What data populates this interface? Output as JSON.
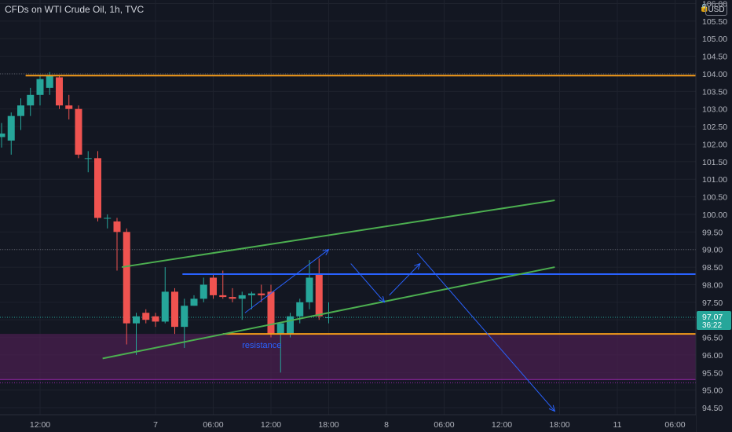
{
  "title": "CFDs on WTI Crude Oil, 1h, TVC",
  "currency": "USD",
  "price_label": {
    "price": "97.07",
    "countdown": "36:22"
  },
  "annotations": {
    "resistance": "resistance"
  },
  "colors": {
    "background": "#131722",
    "grid": "#1e222d",
    "up": "#26a69a",
    "down": "#ef5350",
    "orange_line": "#f59c1a",
    "green_line": "#4caf50",
    "blue_line": "#2962ff",
    "zone": "#4a1f4f",
    "zone_edge": "#9c27b0",
    "axis_text": "#b2b5be",
    "price_tag": "#26a69a"
  },
  "chart_data": {
    "type": "candlestick",
    "title": "CFDs on WTI Crude Oil, 1h, TVC",
    "ylim": [
      94.3,
      106.1
    ],
    "y_ticks": [
      "94.50",
      "95.00",
      "95.50",
      "96.00",
      "96.50",
      "97.00",
      "97.50",
      "98.00",
      "98.50",
      "99.00",
      "99.50",
      "100.00",
      "100.50",
      "101.00",
      "101.50",
      "102.00",
      "102.50",
      "103.00",
      "103.50",
      "104.00",
      "104.50",
      "105.00",
      "105.50",
      "106.00"
    ],
    "x_ticks": [
      {
        "bar": 4,
        "label": "12:00"
      },
      {
        "bar": 16,
        "label": "7"
      },
      {
        "bar": 22,
        "label": "06:00"
      },
      {
        "bar": 28,
        "label": "12:00"
      },
      {
        "bar": 34,
        "label": "18:00"
      },
      {
        "bar": 40,
        "label": "8"
      },
      {
        "bar": 46,
        "label": "06:00"
      },
      {
        "bar": 52,
        "label": "12:00"
      },
      {
        "bar": 58,
        "label": "18:00"
      },
      {
        "bar": 64,
        "label": "11"
      },
      {
        "bar": 70,
        "label": "06:00"
      }
    ],
    "candles": [
      {
        "o": 102.2,
        "h": 102.6,
        "l": 101.9,
        "c": 102.3
      },
      {
        "o": 102.1,
        "h": 102.9,
        "l": 101.7,
        "c": 102.8
      },
      {
        "o": 102.8,
        "h": 103.3,
        "l": 102.4,
        "c": 103.1
      },
      {
        "o": 103.1,
        "h": 103.6,
        "l": 102.8,
        "c": 103.4
      },
      {
        "o": 103.4,
        "h": 103.95,
        "l": 103.1,
        "c": 103.85
      },
      {
        "o": 103.6,
        "h": 104.05,
        "l": 103.4,
        "c": 103.95
      },
      {
        "o": 103.9,
        "h": 103.95,
        "l": 103.0,
        "c": 103.1
      },
      {
        "o": 103.1,
        "h": 103.4,
        "l": 102.7,
        "c": 103.0
      },
      {
        "o": 103.0,
        "h": 103.1,
        "l": 101.6,
        "c": 101.7
      },
      {
        "o": 101.6,
        "h": 101.8,
        "l": 101.2,
        "c": 101.6
      },
      {
        "o": 101.6,
        "h": 101.8,
        "l": 99.8,
        "c": 99.9
      },
      {
        "o": 99.9,
        "h": 100.0,
        "l": 99.6,
        "c": 99.9
      },
      {
        "o": 99.8,
        "h": 99.9,
        "l": 98.4,
        "c": 99.5
      },
      {
        "o": 99.5,
        "h": 99.6,
        "l": 96.3,
        "c": 96.9
      },
      {
        "o": 96.9,
        "h": 97.2,
        "l": 96.0,
        "c": 97.1
      },
      {
        "o": 97.2,
        "h": 97.3,
        "l": 96.9,
        "c": 97.0
      },
      {
        "o": 97.1,
        "h": 97.2,
        "l": 96.8,
        "c": 96.95
      },
      {
        "o": 96.95,
        "h": 98.5,
        "l": 96.9,
        "c": 97.8
      },
      {
        "o": 97.8,
        "h": 97.9,
        "l": 96.6,
        "c": 96.8
      },
      {
        "o": 96.8,
        "h": 97.6,
        "l": 96.2,
        "c": 97.4
      },
      {
        "o": 97.4,
        "h": 97.7,
        "l": 97.4,
        "c": 97.6
      },
      {
        "o": 97.6,
        "h": 98.2,
        "l": 97.5,
        "c": 98.0
      },
      {
        "o": 98.2,
        "h": 98.3,
        "l": 97.6,
        "c": 97.7
      },
      {
        "o": 97.7,
        "h": 98.4,
        "l": 97.6,
        "c": 97.65
      },
      {
        "o": 97.65,
        "h": 97.9,
        "l": 97.5,
        "c": 97.6
      },
      {
        "o": 97.6,
        "h": 97.8,
        "l": 97.0,
        "c": 97.7
      },
      {
        "o": 97.7,
        "h": 97.8,
        "l": 97.3,
        "c": 97.75
      },
      {
        "o": 97.75,
        "h": 98.0,
        "l": 97.5,
        "c": 97.7
      },
      {
        "o": 97.8,
        "h": 98.0,
        "l": 96.5,
        "c": 96.6
      },
      {
        "o": 96.6,
        "h": 96.9,
        "l": 95.5,
        "c": 96.9
      },
      {
        "o": 96.6,
        "h": 97.2,
        "l": 96.5,
        "c": 97.1
      },
      {
        "o": 97.1,
        "h": 97.6,
        "l": 96.9,
        "c": 97.5
      },
      {
        "o": 97.5,
        "h": 98.7,
        "l": 97.3,
        "c": 98.2
      },
      {
        "o": 98.3,
        "h": 98.75,
        "l": 97.0,
        "c": 97.1
      },
      {
        "o": 97.07,
        "h": 97.5,
        "l": 96.9,
        "c": 97.07
      }
    ],
    "drawings": {
      "horizontal_lines": [
        {
          "color": "orange",
          "x1": 2.5,
          "x2": 114,
          "price": 103.95
        },
        {
          "color": "orange",
          "x1": 23,
          "x2": 114,
          "price": 96.6
        },
        {
          "color": "blue",
          "x1": 18.8,
          "x2": 111,
          "price": 98.3
        }
      ],
      "trend_lines": [
        {
          "color": "green",
          "x1": 12.5,
          "y1": 98.5,
          "x2": 57.5,
          "y2": 100.4
        },
        {
          "color": "green",
          "x1": 10.5,
          "y1": 95.9,
          "x2": 57.5,
          "y2": 98.5
        }
      ],
      "arrows": [
        {
          "x1": 25.3,
          "y1": 97.2,
          "x2": 34,
          "y2": 99.0
        },
        {
          "x1": 36.3,
          "y1": 98.6,
          "x2": 39.8,
          "y2": 97.5
        },
        {
          "x1": 40.3,
          "y1": 97.7,
          "x2": 43.5,
          "y2": 98.6
        },
        {
          "x1": 43.2,
          "y1": 98.9,
          "x2": 57.5,
          "y2": 94.4
        }
      ],
      "zone": {
        "from": 95.3,
        "to": 96.6
      }
    }
  }
}
